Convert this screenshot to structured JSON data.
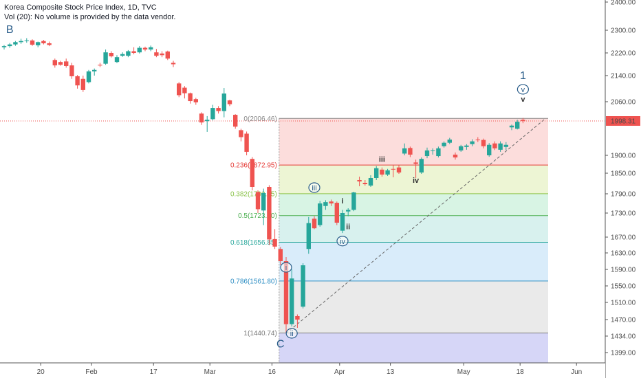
{
  "header": {
    "title": "Korea Composite Stock Price Index, 1D, TVC",
    "volume_note": "Vol (20): No volume is provided by the data vendor."
  },
  "colors": {
    "up": "#26a69a",
    "down": "#ef5350",
    "price_line": "#ef5350",
    "wave_label": "#2a5d8a",
    "background": "#ffffff"
  },
  "chart_data": {
    "type": "candlestick",
    "title": "Korea Composite Stock Price Index, 1D, TVC",
    "y_ticks": [
      2400,
      2300,
      2220,
      2140,
      2060,
      1998.31,
      1900,
      1850,
      1790,
      1730,
      1670,
      1630,
      1590,
      1550,
      1510,
      1470,
      1434,
      1399
    ],
    "y_tick_labels": [
      "2400.00",
      "2300.00",
      "2220.00",
      "2140.00",
      "2060.00",
      "1998.31",
      "1900.00",
      "1850.00",
      "1790.00",
      "1730.00",
      "1670.00",
      "1630.00",
      "1590.00",
      "1550.00",
      "1510.00",
      "1470.00",
      "1434.00",
      "1399.00"
    ],
    "x_ticks": [
      {
        "label": "20",
        "index": 6
      },
      {
        "label": "Feb",
        "index": 15
      },
      {
        "label": "17",
        "index": 26
      },
      {
        "label": "Mar",
        "index": 36
      },
      {
        "label": "16",
        "index": 47
      },
      {
        "label": "Apr",
        "index": 59
      },
      {
        "label": "13",
        "index": 68
      },
      {
        "label": "May",
        "index": 81
      },
      {
        "label": "18",
        "index": 91
      },
      {
        "label": "Jun",
        "index": 101
      }
    ],
    "last_price": {
      "value": 1998.31,
      "label": "1998.31"
    },
    "candles": [
      {
        "o": 2240,
        "h": 2248,
        "l": 2232,
        "c": 2244
      },
      {
        "o": 2244,
        "h": 2255,
        "l": 2238,
        "c": 2250
      },
      {
        "o": 2250,
        "h": 2262,
        "l": 2245,
        "c": 2258
      },
      {
        "o": 2258,
        "h": 2270,
        "l": 2252,
        "c": 2262
      },
      {
        "o": 2262,
        "h": 2272,
        "l": 2256,
        "c": 2264
      },
      {
        "o": 2264,
        "h": 2268,
        "l": 2245,
        "c": 2249
      },
      {
        "o": 2247,
        "h": 2260,
        "l": 2240,
        "c": 2258
      },
      {
        "o": 2262,
        "h": 2266,
        "l": 2250,
        "c": 2254
      },
      {
        "o": 2254,
        "h": 2260,
        "l": 2244,
        "c": 2248
      },
      {
        "o": 2195,
        "h": 2200,
        "l": 2168,
        "c": 2176
      },
      {
        "o": 2188,
        "h": 2192,
        "l": 2175,
        "c": 2178
      },
      {
        "o": 2190,
        "h": 2200,
        "l": 2168,
        "c": 2174
      },
      {
        "o": 2176,
        "h": 2185,
        "l": 2130,
        "c": 2138
      },
      {
        "o": 2138,
        "h": 2142,
        "l": 2100,
        "c": 2110
      },
      {
        "o": 2130,
        "h": 2140,
        "l": 2090,
        "c": 2096
      },
      {
        "o": 2120,
        "h": 2160,
        "l": 2116,
        "c": 2155
      },
      {
        "o": 2155,
        "h": 2165,
        "l": 2140,
        "c": 2160
      },
      {
        "o": 2178,
        "h": 2185,
        "l": 2170,
        "c": 2176
      },
      {
        "o": 2182,
        "h": 2232,
        "l": 2178,
        "c": 2222
      },
      {
        "o": 2220,
        "h": 2226,
        "l": 2204,
        "c": 2208
      },
      {
        "o": 2188,
        "h": 2212,
        "l": 2184,
        "c": 2205
      },
      {
        "o": 2210,
        "h": 2222,
        "l": 2206,
        "c": 2216
      },
      {
        "o": 2210,
        "h": 2230,
        "l": 2205,
        "c": 2226
      },
      {
        "o": 2226,
        "h": 2240,
        "l": 2215,
        "c": 2220
      },
      {
        "o": 2222,
        "h": 2244,
        "l": 2218,
        "c": 2238
      },
      {
        "o": 2238,
        "h": 2242,
        "l": 2226,
        "c": 2232
      },
      {
        "o": 2232,
        "h": 2246,
        "l": 2226,
        "c": 2240
      },
      {
        "o": 2222,
        "h": 2234,
        "l": 2205,
        "c": 2210
      },
      {
        "o": 2218,
        "h": 2226,
        "l": 2205,
        "c": 2212
      },
      {
        "o": 2225,
        "h": 2228,
        "l": 2195,
        "c": 2200
      },
      {
        "o": 2185,
        "h": 2192,
        "l": 2170,
        "c": 2180
      },
      {
        "o": 2116,
        "h": 2120,
        "l": 2074,
        "c": 2080
      },
      {
        "o": 2103,
        "h": 2108,
        "l": 2070,
        "c": 2086
      },
      {
        "o": 2086,
        "h": 2088,
        "l": 2054,
        "c": 2062
      },
      {
        "o": 2068,
        "h": 2072,
        "l": 2050,
        "c": 2058
      },
      {
        "o": 2022,
        "h": 2026,
        "l": 1987,
        "c": 1994
      },
      {
        "o": 1998,
        "h": 2014,
        "l": 1967,
        "c": 2002
      },
      {
        "o": 2004,
        "h": 2050,
        "l": 2000,
        "c": 2040
      },
      {
        "o": 2040,
        "h": 2046,
        "l": 2022,
        "c": 2030
      },
      {
        "o": 2030,
        "h": 2102,
        "l": 2010,
        "c": 2085
      },
      {
        "o": 2064,
        "h": 2066,
        "l": 2046,
        "c": 2052
      },
      {
        "o": 2018,
        "h": 2020,
        "l": 1976,
        "c": 1982
      },
      {
        "o": 1972,
        "h": 1976,
        "l": 1940,
        "c": 1952
      },
      {
        "o": 1962,
        "h": 1968,
        "l": 1900,
        "c": 1910
      },
      {
        "o": 1890,
        "h": 1895,
        "l": 1800,
        "c": 1810
      },
      {
        "o": 1795,
        "h": 1800,
        "l": 1730,
        "c": 1742
      },
      {
        "o": 1738,
        "h": 1805,
        "l": 1700,
        "c": 1792
      },
      {
        "o": 1810,
        "h": 1815,
        "l": 1650,
        "c": 1664
      },
      {
        "o": 1665,
        "h": 1690,
        "l": 1640,
        "c": 1646
      },
      {
        "o": 1640,
        "h": 1645,
        "l": 1600,
        "c": 1610
      },
      {
        "o": 1610,
        "h": 1620,
        "l": 1440,
        "c": 1460
      },
      {
        "o": 1460,
        "h": 1590,
        "l": 1455,
        "c": 1568
      },
      {
        "o": 1478,
        "h": 1482,
        "l": 1452,
        "c": 1470
      },
      {
        "o": 1500,
        "h": 1605,
        "l": 1496,
        "c": 1600
      },
      {
        "o": 1640,
        "h": 1720,
        "l": 1628,
        "c": 1705
      },
      {
        "o": 1716,
        "h": 1722,
        "l": 1690,
        "c": 1692
      },
      {
        "o": 1700,
        "h": 1768,
        "l": 1696,
        "c": 1760
      },
      {
        "o": 1752,
        "h": 1770,
        "l": 1740,
        "c": 1764
      },
      {
        "o": 1766,
        "h": 1772,
        "l": 1752,
        "c": 1760
      },
      {
        "o": 1762,
        "h": 1766,
        "l": 1700,
        "c": 1706
      },
      {
        "o": 1686,
        "h": 1740,
        "l": 1680,
        "c": 1730
      },
      {
        "o": 1735,
        "h": 1745,
        "l": 1722,
        "c": 1740
      },
      {
        "o": 1740,
        "h": 1796,
        "l": 1736,
        "c": 1794
      },
      {
        "o": 1830,
        "h": 1840,
        "l": 1812,
        "c": 1826
      },
      {
        "o": 1822,
        "h": 1830,
        "l": 1814,
        "c": 1818
      },
      {
        "o": 1814,
        "h": 1844,
        "l": 1810,
        "c": 1836
      },
      {
        "o": 1836,
        "h": 1870,
        "l": 1830,
        "c": 1864
      },
      {
        "o": 1860,
        "h": 1866,
        "l": 1840,
        "c": 1846
      },
      {
        "o": 1846,
        "h": 1862,
        "l": 1842,
        "c": 1858
      },
      {
        "o": 1862,
        "h": 1872,
        "l": 1838,
        "c": 1860
      },
      {
        "o": 1866,
        "h": 1872,
        "l": 1848,
        "c": 1852
      },
      {
        "o": 1905,
        "h": 1934,
        "l": 1900,
        "c": 1920
      },
      {
        "o": 1921,
        "h": 1925,
        "l": 1895,
        "c": 1902
      },
      {
        "o": 1880,
        "h": 1888,
        "l": 1836,
        "c": 1876
      },
      {
        "o": 1852,
        "h": 1894,
        "l": 1848,
        "c": 1890
      },
      {
        "o": 1898,
        "h": 1922,
        "l": 1892,
        "c": 1914
      },
      {
        "o": 1912,
        "h": 1920,
        "l": 1902,
        "c": 1914
      },
      {
        "o": 1898,
        "h": 1925,
        "l": 1894,
        "c": 1920
      },
      {
        "o": 1926,
        "h": 1940,
        "l": 1922,
        "c": 1936
      },
      {
        "o": 1936,
        "h": 1950,
        "l": 1932,
        "c": 1945
      },
      {
        "o": 1902,
        "h": 1908,
        "l": 1888,
        "c": 1894
      },
      {
        "o": 1914,
        "h": 1930,
        "l": 1910,
        "c": 1926
      },
      {
        "o": 1924,
        "h": 1932,
        "l": 1916,
        "c": 1928
      },
      {
        "o": 1932,
        "h": 1946,
        "l": 1926,
        "c": 1940
      },
      {
        "o": 1945,
        "h": 1952,
        "l": 1938,
        "c": 1944
      },
      {
        "o": 1944,
        "h": 1948,
        "l": 1920,
        "c": 1926
      },
      {
        "o": 1900,
        "h": 1935,
        "l": 1896,
        "c": 1930
      },
      {
        "o": 1934,
        "h": 1940,
        "l": 1915,
        "c": 1920
      },
      {
        "o": 1916,
        "h": 1940,
        "l": 1910,
        "c": 1934
      },
      {
        "o": 1924,
        "h": 1938,
        "l": 1915,
        "c": 1930
      },
      {
        "o": 1980,
        "h": 1988,
        "l": 1972,
        "c": 1985
      },
      {
        "o": 1976,
        "h": 2002,
        "l": 1974,
        "c": 1996
      },
      {
        "o": 2002,
        "h": 2008,
        "l": 1992,
        "c": 1998
      }
    ],
    "fib_retracement": {
      "levels": [
        {
          "ratio_label": "0",
          "price_label": "2006.46",
          "price": 2006.46,
          "color": "#888888",
          "fill": "rgba(239,83,80,0.20)"
        },
        {
          "ratio_label": "0.236",
          "price_label": "1872.95",
          "price": 1872.95,
          "color": "#e53935",
          "fill": "rgba(173,210,60,0.22)"
        },
        {
          "ratio_label": "0.382",
          "price_label": "1790.35",
          "price": 1790.35,
          "color": "#8bc34a",
          "fill": "rgba(60,200,120,0.20)"
        },
        {
          "ratio_label": "0.5",
          "price_label": "1723.60",
          "price": 1723.6,
          "color": "#4caf50",
          "fill": "rgba(38,180,160,0.18)"
        },
        {
          "ratio_label": "0.618",
          "price_label": "1656.85",
          "price": 1656.85,
          "color": "#26a69a",
          "fill": "rgba(66,160,230,0.20)"
        },
        {
          "ratio_label": "0.786",
          "price_label": "1561.80",
          "price": 1561.8,
          "color": "#2f8fc4",
          "fill": "rgba(150,150,150,0.20)"
        },
        {
          "ratio_label": "1",
          "price_label": "1440.74",
          "price": 1440.74,
          "color": "#777777",
          "fill": "rgba(120,120,230,0.30)"
        }
      ],
      "start_index": 49,
      "end_index": 95,
      "bottom_band_price": 1380
    },
    "trendline": {
      "from": {
        "index": 50,
        "price": 1440
      },
      "to": {
        "index": 95,
        "price": 2006
      }
    },
    "wave_labels": [
      {
        "text": "B",
        "index": 1,
        "price": 2290,
        "style": "plain-large"
      },
      {
        "text": "C",
        "index": 49,
        "price": 1410,
        "style": "plain-large"
      },
      {
        "text": "1",
        "index": 92,
        "price": 2130,
        "style": "plain-large"
      },
      {
        "text": "v",
        "index": 92,
        "price": 2098,
        "style": "circled"
      },
      {
        "text": "v",
        "index": 92,
        "price": 2060,
        "style": "plain-small"
      },
      {
        "text": "i",
        "index": 50,
        "price": 1595,
        "style": "circled"
      },
      {
        "text": "ii",
        "index": 51,
        "price": 1440,
        "style": "circled"
      },
      {
        "text": "iii",
        "index": 55,
        "price": 1808,
        "style": "circled"
      },
      {
        "text": "iv",
        "index": 60,
        "price": 1660,
        "style": "circled"
      },
      {
        "text": "i",
        "index": 60,
        "price": 1760,
        "style": "plain-small"
      },
      {
        "text": "ii",
        "index": 61,
        "price": 1690,
        "style": "plain-small"
      },
      {
        "text": "iii",
        "index": 67,
        "price": 1882,
        "style": "plain-small"
      },
      {
        "text": "iv",
        "index": 73,
        "price": 1822,
        "style": "plain-small"
      }
    ]
  }
}
